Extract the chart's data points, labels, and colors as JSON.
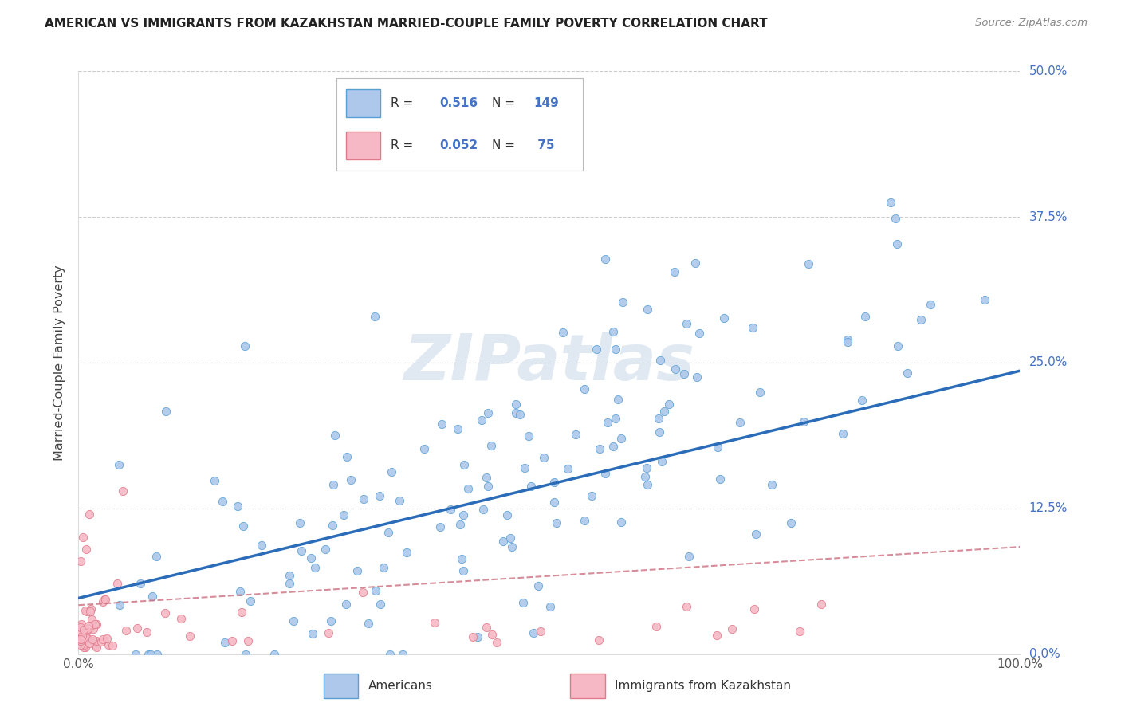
{
  "title": "AMERICAN VS IMMIGRANTS FROM KAZAKHSTAN MARRIED-COUPLE FAMILY POVERTY CORRELATION CHART",
  "source": "Source: ZipAtlas.com",
  "ylabel": "Married-Couple Family Poverty",
  "legend_label1": "Americans",
  "legend_label2": "Immigrants from Kazakhstan",
  "R1": 0.516,
  "N1": 149,
  "R2": 0.052,
  "N2": 75,
  "color_american": "#adc8ea",
  "color_american_edge": "#5a9fd4",
  "color_american_line": "#2b6cb8",
  "color_kazakhstan": "#f5b8c4",
  "color_kazakhstan_edge": "#e07a8a",
  "color_kazakhstan_line": "#cc7080",
  "color_grid": "#cccccc",
  "xlim": [
    0.0,
    1.0
  ],
  "ylim": [
    0.0,
    0.5
  ],
  "yticks": [
    0.0,
    0.125,
    0.25,
    0.375,
    0.5
  ],
  "ytick_labels": [
    "0.0%",
    "12.5%",
    "25.0%",
    "37.5%",
    "50.0%"
  ],
  "background_color": "#ffffff",
  "watermark_color": "#c8d8e8",
  "watermark_text": "ZIPatlas",
  "title_color": "#222222",
  "source_color": "#888888",
  "tick_color": "#4472c4"
}
